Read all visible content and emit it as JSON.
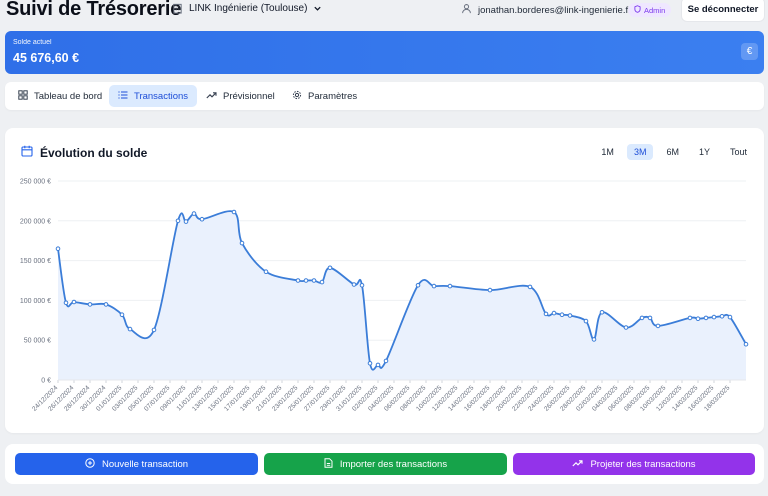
{
  "header": {
    "app_title": "Suivi de Trésorerie",
    "company": "LINK Ingénierie (Toulouse)",
    "user_email": "jonathan.borderes@link-ingenierie.fr",
    "role_badge": "Admin",
    "logout_label": "Se déconnecter"
  },
  "balance": {
    "label": "Solde actuel",
    "value": "45 676,60 €",
    "currency_symbol": "€"
  },
  "tabs": [
    {
      "label": "Tableau de bord",
      "icon": "dashboard-grid-icon",
      "active": false
    },
    {
      "label": "Transactions",
      "icon": "list-icon",
      "active": true
    },
    {
      "label": "Prévisionnel",
      "icon": "trend-up-icon",
      "active": false
    },
    {
      "label": "Paramètres",
      "icon": "gear-icon",
      "active": false
    }
  ],
  "chart_section": {
    "title": "Évolution du solde",
    "ranges": [
      {
        "label": "1M",
        "active": false
      },
      {
        "label": "3M",
        "active": true
      },
      {
        "label": "6M",
        "active": false
      },
      {
        "label": "1Y",
        "active": false
      },
      {
        "label": "Tout",
        "active": false
      }
    ]
  },
  "chart_data": {
    "type": "area",
    "title": "Évolution du solde",
    "xlabel": "",
    "ylabel": "",
    "ylim": [
      0,
      250000
    ],
    "y_ticks": [
      0,
      50000,
      100000,
      150000,
      200000,
      250000
    ],
    "y_tick_labels": [
      "0 €",
      "50 000 €",
      "100 000 €",
      "150 000 €",
      "200 000 €",
      "250 000 €"
    ],
    "x_range": [
      "2024-12-24",
      "2025-03-20"
    ],
    "x_tick_labels": [
      "24/12/2024",
      "26/12/2024",
      "28/12/2024",
      "30/12/2024",
      "01/01/2025",
      "03/01/2025",
      "05/01/2025",
      "07/01/2025",
      "09/01/2025",
      "11/01/2025",
      "13/01/2025",
      "15/01/2025",
      "17/01/2025",
      "19/01/2025",
      "21/01/2025",
      "23/01/2025",
      "25/01/2025",
      "27/01/2025",
      "29/01/2025",
      "31/01/2025",
      "02/02/2025",
      "04/02/2025",
      "06/02/2025",
      "08/02/2025",
      "10/02/2025",
      "12/02/2025",
      "14/02/2025",
      "16/02/2025",
      "18/02/2025",
      "20/02/2025",
      "22/02/2025",
      "24/02/2025",
      "26/02/2025",
      "28/02/2025",
      "02/03/2025",
      "04/03/2025",
      "06/03/2025",
      "08/03/2025",
      "10/03/2025",
      "12/03/2025",
      "14/03/2025",
      "16/03/2025",
      "18/03/2025"
    ],
    "grid": true,
    "color": "#3b7dd8",
    "fill_color": "#eaf1fd",
    "points": [
      {
        "x": "2024-12-24",
        "y": 165000
      },
      {
        "x": "2024-12-25",
        "y": 97000
      },
      {
        "x": "2024-12-26",
        "y": 98000
      },
      {
        "x": "2024-12-28",
        "y": 95000
      },
      {
        "x": "2024-12-30",
        "y": 95000
      },
      {
        "x": "2025-01-01",
        "y": 82000
      },
      {
        "x": "2025-01-02",
        "y": 64000
      },
      {
        "x": "2025-01-05",
        "y": 63000
      },
      {
        "x": "2025-01-08",
        "y": 200000
      },
      {
        "x": "2025-01-09",
        "y": 199000
      },
      {
        "x": "2025-01-10",
        "y": 209000
      },
      {
        "x": "2025-01-11",
        "y": 202000
      },
      {
        "x": "2025-01-15",
        "y": 211000
      },
      {
        "x": "2025-01-16",
        "y": 172000
      },
      {
        "x": "2025-01-19",
        "y": 136000
      },
      {
        "x": "2025-01-23",
        "y": 125000
      },
      {
        "x": "2025-01-24",
        "y": 125000
      },
      {
        "x": "2025-01-25",
        "y": 125000
      },
      {
        "x": "2025-01-26",
        "y": 123000
      },
      {
        "x": "2025-01-27",
        "y": 141000
      },
      {
        "x": "2025-01-30",
        "y": 120000
      },
      {
        "x": "2025-01-31",
        "y": 119000
      },
      {
        "x": "2025-02-01",
        "y": 21000
      },
      {
        "x": "2025-02-02",
        "y": 19000
      },
      {
        "x": "2025-02-03",
        "y": 24000
      },
      {
        "x": "2025-02-07",
        "y": 119000
      },
      {
        "x": "2025-02-09",
        "y": 118000
      },
      {
        "x": "2025-02-11",
        "y": 118000
      },
      {
        "x": "2025-02-16",
        "y": 113000
      },
      {
        "x": "2025-02-21",
        "y": 117000
      },
      {
        "x": "2025-02-23",
        "y": 83000
      },
      {
        "x": "2025-02-24",
        "y": 84000
      },
      {
        "x": "2025-02-25",
        "y": 82000
      },
      {
        "x": "2025-02-26",
        "y": 81000
      },
      {
        "x": "2025-02-28",
        "y": 74000
      },
      {
        "x": "2025-03-01",
        "y": 51000
      },
      {
        "x": "2025-03-02",
        "y": 85000
      },
      {
        "x": "2025-03-05",
        "y": 66000
      },
      {
        "x": "2025-03-07",
        "y": 78000
      },
      {
        "x": "2025-03-08",
        "y": 78000
      },
      {
        "x": "2025-03-09",
        "y": 68000
      },
      {
        "x": "2025-03-13",
        "y": 78000
      },
      {
        "x": "2025-03-14",
        "y": 77000
      },
      {
        "x": "2025-03-15",
        "y": 78000
      },
      {
        "x": "2025-03-16",
        "y": 79000
      },
      {
        "x": "2025-03-17",
        "y": 80000
      },
      {
        "x": "2025-03-18",
        "y": 79000
      },
      {
        "x": "2025-03-20",
        "y": 45000
      }
    ]
  },
  "actions": {
    "new_transaction": "Nouvelle transaction",
    "import_transactions": "Importer des transactions",
    "project_transactions": "Projeter des transactions"
  }
}
